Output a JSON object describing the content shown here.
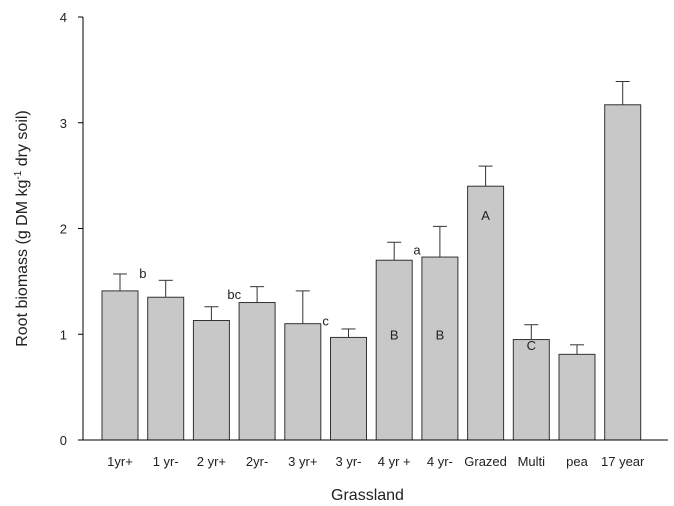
{
  "chart_data": {
    "type": "bar",
    "xlabel": "Grassland",
    "ylabel": "Root biomass (g DM kg",
    "ylabel_sup": "-1",
    "ylabel_end": " dry soil)",
    "ylim": [
      0,
      4
    ],
    "yticks": [
      "0",
      "1",
      "2",
      "3",
      "4"
    ],
    "categories": [
      "1yr+",
      "1 yr-",
      "2 yr+",
      "2yr-",
      "3 yr+",
      "3 yr-",
      "4 yr +",
      "4 yr-",
      "Grazed",
      "Multi",
      "pea",
      "17 year"
    ],
    "values": [
      1.41,
      1.35,
      1.13,
      1.3,
      1.1,
      0.97,
      1.7,
      1.73,
      2.4,
      0.95,
      0.81,
      3.17
    ],
    "errors": [
      0.16,
      0.16,
      0.13,
      0.15,
      0.31,
      0.08,
      0.17,
      0.29,
      0.19,
      0.14,
      0.09,
      0.22
    ],
    "bar_color": "#c8c8c8",
    "bar_stroke": "#333333",
    "grid": false,
    "annotations": [
      {
        "text": "b",
        "category": "1yr+",
        "placement": "right-side",
        "y": 1.58
      },
      {
        "text": "bc",
        "category": "2 yr+",
        "placement": "right-side",
        "y": 1.38
      },
      {
        "text": "c",
        "category": "3 yr+",
        "placement": "right-side",
        "y": 1.13
      },
      {
        "text": "a",
        "category": "4 yr +",
        "placement": "right-side",
        "y": 1.8
      },
      {
        "text": "B",
        "category": "4 yr +",
        "placement": "inside",
        "y": 1.0
      },
      {
        "text": "B",
        "category": "4 yr-",
        "placement": "inside",
        "y": 1.0
      },
      {
        "text": "A",
        "category": "Grazed",
        "placement": "inside",
        "y": 2.13
      },
      {
        "text": "C",
        "category": "Multi",
        "placement": "inside",
        "y": 0.9
      }
    ]
  }
}
